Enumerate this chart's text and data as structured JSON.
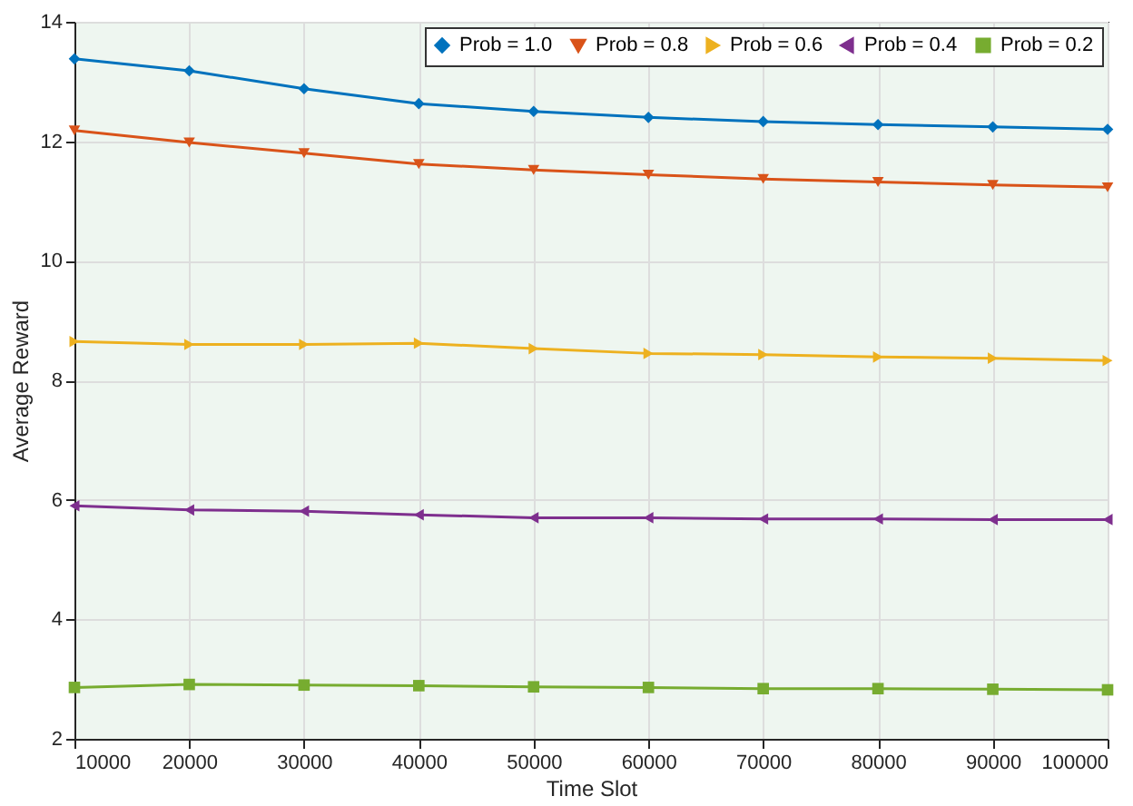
{
  "chart_data": {
    "type": "line",
    "xlabel": "Time Slot",
    "ylabel": "Average Reward",
    "x": [
      10000,
      20000,
      30000,
      40000,
      50000,
      60000,
      70000,
      80000,
      90000,
      100000
    ],
    "xlim": [
      10000,
      100000
    ],
    "xticks": [
      10000,
      20000,
      30000,
      40000,
      50000,
      60000,
      70000,
      80000,
      90000,
      100000
    ],
    "ylim": [
      2,
      14
    ],
    "yticks": [
      2,
      4,
      6,
      8,
      10,
      12,
      14
    ],
    "grid": true,
    "legend": "top right",
    "line_style": "solid",
    "series": [
      {
        "name": "Prob = 1.0",
        "color": "#0072bd",
        "marker": "diamond",
        "values": [
          13.38,
          13.18,
          12.88,
          12.63,
          12.5,
          12.4,
          12.33,
          12.28,
          12.24,
          12.2
        ]
      },
      {
        "name": "Prob = 0.8",
        "color": "#d95319",
        "marker": "triangle-down",
        "values": [
          12.18,
          11.98,
          11.8,
          11.62,
          11.52,
          11.44,
          11.37,
          11.32,
          11.27,
          11.23
        ]
      },
      {
        "name": "Prob = 0.6",
        "color": "#edb120",
        "marker": "triangle-right",
        "values": [
          8.65,
          8.6,
          8.6,
          8.62,
          8.53,
          8.45,
          8.43,
          8.39,
          8.37,
          8.33
        ]
      },
      {
        "name": "Prob = 0.4",
        "color": "#7e2f8e",
        "marker": "triangle-left",
        "values": [
          5.9,
          5.83,
          5.81,
          5.75,
          5.7,
          5.7,
          5.68,
          5.68,
          5.67,
          5.67
        ]
      },
      {
        "name": "Prob = 0.2",
        "color": "#77ac30",
        "marker": "square",
        "values": [
          2.86,
          2.91,
          2.9,
          2.89,
          2.87,
          2.86,
          2.84,
          2.84,
          2.83,
          2.82
        ]
      }
    ]
  }
}
